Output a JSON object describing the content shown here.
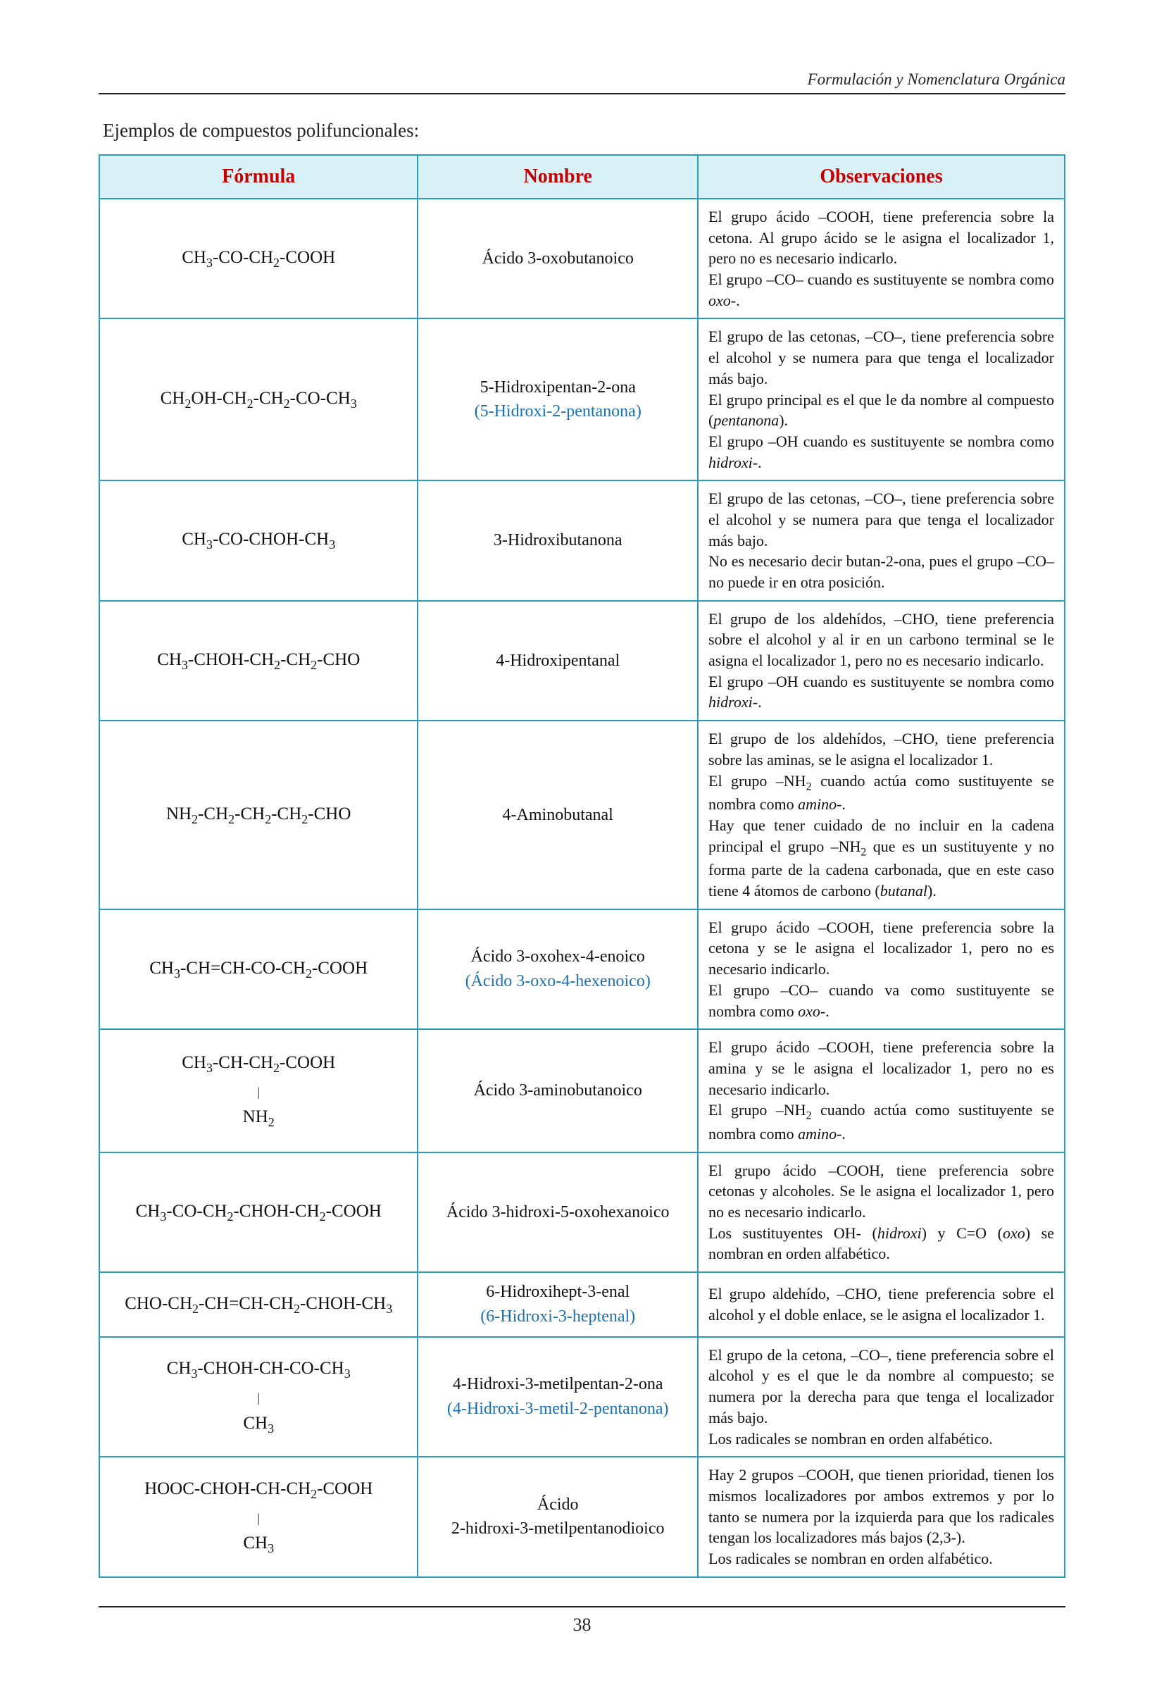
{
  "doc": {
    "running_header": "Formulación y Nomenclatura Orgánica",
    "intro": "Ejemplos de compuestos polifuncionales:",
    "page_number": "38"
  },
  "colors": {
    "border": "#2a9dbb",
    "header_bg": "#d8f1f7",
    "header_text": "#c40000",
    "alt_name": "#1b6fb3",
    "text": "#111111",
    "rule": "#222222",
    "background": "#ffffff"
  },
  "fonts": {
    "family": "Times New Roman",
    "header_pt": 28,
    "formula_pt": 25,
    "name_pt": 24,
    "obs_pt": 22,
    "running_header_pt": 23,
    "intro_pt": 27,
    "page_number_pt": 26
  },
  "table": {
    "headers": {
      "formula": "Fórmula",
      "name": "Nombre",
      "obs": "Observaciones"
    },
    "col_widths_pct": [
      33,
      29,
      38
    ],
    "rows": [
      {
        "formula_html": "CH<sub>3</sub>-CO-CH<sub>2</sub>-COOH",
        "name": "Ácido 3-oxobutanoico",
        "alt_name": "",
        "obs_html": "El grupo ácido –COOH, tiene preferencia sobre la cetona. Al grupo ácido se le asigna el localizador 1, pero no es necesario indicarlo.<br>El grupo –CO– cuando es sustituyente se nombra como <span class=\"ital\">oxo-</span>."
      },
      {
        "formula_html": "CH<sub>2</sub>OH-CH<sub>2</sub>-CH<sub>2</sub>-CO-CH<sub>3</sub>",
        "name": "5-Hidroxipentan-2-ona",
        "alt_name": "(5-Hidroxi-2-pentanona)",
        "obs_html": "El grupo de las cetonas, –CO–, tiene preferencia sobre el alcohol y se numera para que tenga el localizador más bajo.<br>El grupo principal es el que le da nombre al compuesto (<span class=\"ital\">pentanona</span>).<br>El grupo –OH cuando es sustituyente se nombra como <span class=\"ital\">hidroxi-</span>."
      },
      {
        "formula_html": "CH<sub>3</sub>-CO-CHOH-CH<sub>3</sub>",
        "name": "3-Hidroxibutanona",
        "alt_name": "",
        "obs_html": "El grupo de las cetonas, –CO–, tiene preferencia sobre el alcohol y se numera para que tenga el localizador más bajo.<br>No es necesario decir butan-2-ona, pues el grupo –CO– no puede ir en otra posición."
      },
      {
        "formula_html": "CH<sub>3</sub>-CHOH-CH<sub>2</sub>-CH<sub>2</sub>-CHO",
        "name": "4-Hidroxipentanal",
        "alt_name": "",
        "obs_html": "El grupo de los aldehídos, –CHO, tiene preferencia sobre el alcohol y al ir en un carbono terminal se le asigna el localizador 1, pero no es necesario indicarlo.<br>El grupo –OH cuando es sustituyente se nombra como <span class=\"ital\">hidroxi-</span>."
      },
      {
        "formula_html": "NH<sub>2</sub>-CH<sub>2</sub>-CH<sub>2</sub>-CH<sub>2</sub>-CHO",
        "name": "4-Aminobutanal",
        "alt_name": "",
        "obs_html": "El grupo de los aldehídos, –CHO, tiene preferencia sobre las aminas, se le asigna el localizador 1.<br>El grupo –NH<sub>2</sub> cuando actúa como sustituyente se nombra como <span class=\"ital\">amino-</span>.<br>Hay que tener cuidado de no incluir en la cadena principal el grupo –NH<sub>2</sub> que es un sustituyente y no forma parte de la cadena carbonada, que en este caso tiene 4 átomos de carbono (<span class=\"ital\">butanal</span>)."
      },
      {
        "formula_html": "CH<sub>3</sub>-CH=CH-CO-CH<sub>2</sub>-COOH",
        "name": "Ácido 3-oxohex-4-enoico",
        "alt_name": "(Ácido 3-oxo-4-hexenoico)",
        "obs_html": "El grupo ácido –COOH, tiene preferencia sobre la cetona y se le asigna el localizador 1, pero no es necesario indicarlo.<br>El grupo –CO– cuando va como sustituyente se nombra como <span class=\"ital\">oxo-</span>."
      },
      {
        "formula_html": "CH<sub>3</sub>-CH-CH<sub>2</sub>-COOH<br><span class=\"branch-line\">|</span><br><span class=\"branch-group\">NH<sub>2</sub></span>",
        "name": "Ácido 3-aminobutanoico",
        "alt_name": "",
        "obs_html": "El grupo ácido –COOH, tiene preferencia sobre la amina y se le asigna el localizador 1, pero no es necesario indicarlo.<br>El grupo –NH<sub>2</sub> cuando actúa como sustituyente se nombra como <span class=\"ital\">amino-</span>."
      },
      {
        "formula_html": "CH<sub>3</sub>-CO-CH<sub>2</sub>-CHOH-CH<sub>2</sub>-COOH",
        "name": "Ácido 3-hidroxi-5-oxohexanoico",
        "alt_name": "",
        "obs_html": "El grupo ácido –COOH, tiene preferencia sobre cetonas y alcoholes. Se le asigna el localizador 1, pero no es necesario indicarlo.<br>Los sustituyentes OH- (<span class=\"ital\">hidroxi</span>) y C=O (<span class=\"ital\">oxo</span>) se nombran en orden alfabético."
      },
      {
        "formula_html": "CHO-CH<sub>2</sub>-CH=CH-CH<sub>2</sub>-CHOH-CH<sub>3</sub>",
        "name": "6-Hidroxihept-3-enal",
        "alt_name": "(6-Hidroxi-3-heptenal)",
        "obs_html": "El grupo aldehído, –CHO, tiene preferencia sobre el alcohol y el doble enlace, se le asigna el localizador 1."
      },
      {
        "formula_html": "CH<sub>3</sub>-CHOH-CH-CO-CH<sub>3</sub><br><span class=\"branch-line\">|</span><br><span class=\"branch-group\">CH<sub>3</sub></span>",
        "name": "4-Hidroxi-3-metilpentan-2-ona",
        "alt_name": "(4-Hidroxi-3-metil-2-pentanona)",
        "obs_html": "El grupo de la cetona, –CO–, tiene preferencia sobre el alcohol y es el que le da nombre al compuesto; se numera por la derecha para que tenga el localizador más bajo.<br>Los radicales se nombran en orden alfabético."
      },
      {
        "formula_html": "HOOC-CHOH-CH-CH<sub>2</sub>-COOH<br><span class=\"branch-line\">|</span><br><span class=\"branch-group\">CH<sub>3</sub></span>",
        "name": "Ácido",
        "name_line2": "2-hidroxi-3-metilpentanodioico",
        "alt_name": "",
        "obs_html": "Hay 2 grupos –COOH, que tienen prioridad, tienen los mismos localizadores por ambos extremos y por lo tanto se numera por la izquierda para que los radicales tengan los localizadores más bajos (2,3-).<br>Los radicales se nombran en orden alfabético."
      }
    ]
  }
}
